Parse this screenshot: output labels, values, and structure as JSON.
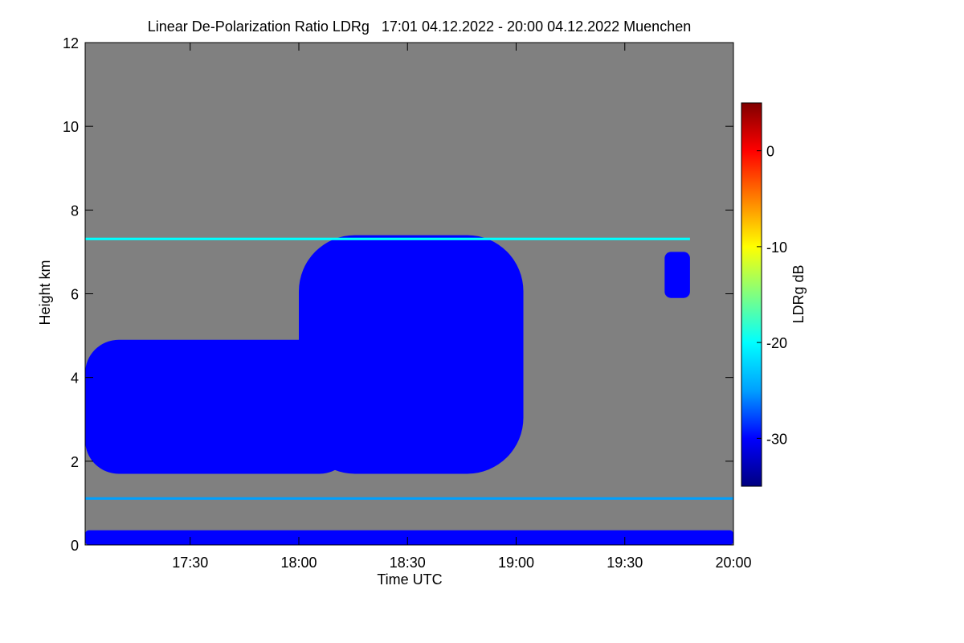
{
  "chart_data": {
    "type": "heatmap",
    "title": "Linear De-Polarization Ratio LDRg   17:01 04.12.2022 - 20:00 04.12.2022 Muenchen",
    "xlabel": "Time UTC",
    "ylabel": "Height km",
    "xlim": [
      "17:01",
      "20:00"
    ],
    "ylim": [
      0,
      12
    ],
    "x_ticks": [
      "17:30",
      "18:00",
      "18:30",
      "19:00",
      "19:30",
      "20:00"
    ],
    "y_ticks": [
      0,
      2,
      4,
      6,
      8,
      10,
      12
    ],
    "colorbar": {
      "label": "LDRg dB",
      "range": [
        -35,
        5
      ],
      "ticks": [
        0,
        -10,
        -20,
        -30
      ],
      "colors": [
        "#000080",
        "#0000ff",
        "#00a0ff",
        "#00ffff",
        "#80ff80",
        "#ffff00",
        "#ff8000",
        "#ff0000",
        "#800000"
      ]
    },
    "background_color": "#808080",
    "features": [
      {
        "name": "lower-cloud-layer",
        "time_range": [
          "17:01",
          "18:15"
        ],
        "height_range_km": [
          1.7,
          4.9
        ],
        "ldr_db": -31
      },
      {
        "name": "main-cloud",
        "time_range": [
          "18:00",
          "19:02"
        ],
        "height_range_km": [
          1.7,
          7.4
        ],
        "ldr_db": -30
      },
      {
        "name": "cloud-patch",
        "time_range": [
          "19:41",
          "19:48"
        ],
        "height_range_km": [
          5.9,
          7.0
        ],
        "ldr_db": -29
      },
      {
        "name": "surface-layer",
        "time_range": [
          "17:01",
          "20:00"
        ],
        "height_range_km": [
          0.0,
          0.35
        ],
        "ldr_db": -31
      },
      {
        "name": "thin-layer-1.1km",
        "time_range": [
          "17:01",
          "20:00"
        ],
        "height_range_km": [
          1.08,
          1.14
        ],
        "ldr_db": -26
      },
      {
        "name": "thin-layer-7.3km",
        "time_range": [
          "17:01",
          "19:48"
        ],
        "height_range_km": [
          7.28,
          7.34
        ],
        "ldr_db": -22
      }
    ]
  }
}
